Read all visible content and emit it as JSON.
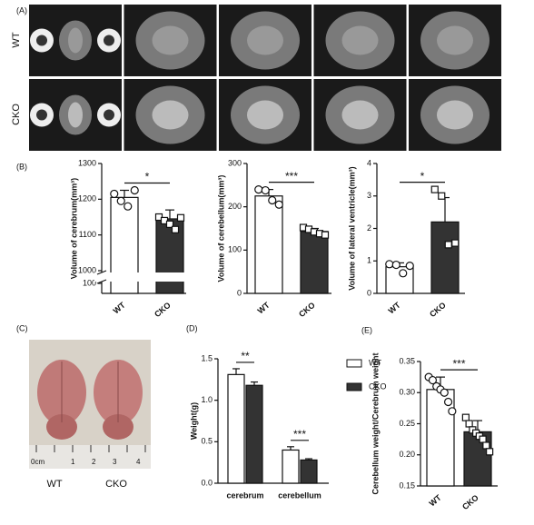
{
  "figure": {
    "panels": [
      "(A)",
      "(B)",
      "(C)",
      "(D)",
      "(E)"
    ],
    "mri_rows": [
      "WT",
      "CKO"
    ],
    "photo_labels": [
      "WT",
      "CKO"
    ],
    "ruler": [
      "0cm",
      "1",
      "2",
      "3",
      "4"
    ]
  },
  "chart_data": [
    {
      "type": "bar",
      "ylabel": "Volume of cerebrum(mm³)",
      "categories": [
        "WT",
        "CKO"
      ],
      "values": [
        1205,
        1145
      ],
      "errors": [
        20,
        25
      ],
      "points": [
        [
          1215,
          1195,
          1180,
          1225
        ],
        [
          1150,
          1140,
          1130,
          1115,
          1148
        ]
      ],
      "colors": [
        "#ffffff",
        "#333333"
      ],
      "markers": [
        "circle",
        "square"
      ],
      "ylim": [
        0,
        1300
      ],
      "ybreak": [
        100,
        1000
      ],
      "yticks": [
        100,
        1000,
        1100,
        1200,
        1300
      ],
      "annotations": [
        "*"
      ]
    },
    {
      "type": "bar",
      "ylabel": "Volume of cerebellum(mm³)",
      "categories": [
        "WT",
        "CKO"
      ],
      "values": [
        225,
        143
      ],
      "errors": [
        15,
        7
      ],
      "points": [
        [
          240,
          238,
          215,
          205
        ],
        [
          152,
          148,
          142,
          138,
          135
        ]
      ],
      "colors": [
        "#ffffff",
        "#333333"
      ],
      "markers": [
        "circle",
        "square"
      ],
      "ylim": [
        0,
        300
      ],
      "yticks": [
        0,
        100,
        200,
        300
      ],
      "annotations": [
        "***"
      ]
    },
    {
      "type": "bar",
      "ylabel": "Volume of lateral ventricle(mm³)",
      "categories": [
        "WT",
        "CKO"
      ],
      "values": [
        0.82,
        2.2
      ],
      "errors": [
        0.12,
        0.75
      ],
      "points": [
        [
          0.9,
          0.88,
          0.62,
          0.85
        ],
        [
          3.2,
          3.0,
          1.5,
          1.55
        ]
      ],
      "colors": [
        "#ffffff",
        "#333333"
      ],
      "markers": [
        "circle",
        "square"
      ],
      "ylim": [
        0,
        4
      ],
      "yticks": [
        0,
        1,
        2,
        3,
        4
      ],
      "annotations": [
        "*"
      ]
    },
    {
      "type": "grouped",
      "ylabel": "Weight(g)",
      "categories": [
        "cerebrum",
        "cerebellum"
      ],
      "series": [
        {
          "name": "WT",
          "color": "#ffffff",
          "values": [
            1.31,
            0.4
          ],
          "errors": [
            0.07,
            0.04
          ]
        },
        {
          "name": "CKO",
          "color": "#333333",
          "values": [
            1.18,
            0.28
          ],
          "errors": [
            0.04,
            0.015
          ]
        }
      ],
      "ylim": [
        0,
        1.5
      ],
      "yticks": [
        {
          "value": 0,
          "label": "0.0"
        },
        0.5,
        {
          "value": 1,
          "label": "1.0"
        },
        1.5
      ],
      "annotations": [
        "**",
        "***"
      ]
    },
    {
      "type": "bar",
      "ylabel": "Cerebellum weight/Cerebrum weight",
      "categories": [
        "WT",
        "CKO"
      ],
      "values": [
        0.305,
        0.237
      ],
      "errors": [
        0.02,
        0.018
      ],
      "points": [
        [
          0.325,
          0.32,
          0.31,
          0.305,
          0.3,
          0.285,
          0.27
        ],
        [
          0.26,
          0.25,
          0.24,
          0.235,
          0.23,
          0.225,
          0.215,
          0.205
        ]
      ],
      "colors": [
        "#ffffff",
        "#333333"
      ],
      "markers": [
        "circle",
        "square"
      ],
      "ylim": [
        0.15,
        0.35
      ],
      "yticks": [
        0.15,
        {
          "value": 0.2,
          "label": "0.20"
        },
        0.25,
        {
          "value": 0.3,
          "label": "0.30"
        },
        0.35
      ],
      "annotations": [
        "***"
      ]
    }
  ]
}
